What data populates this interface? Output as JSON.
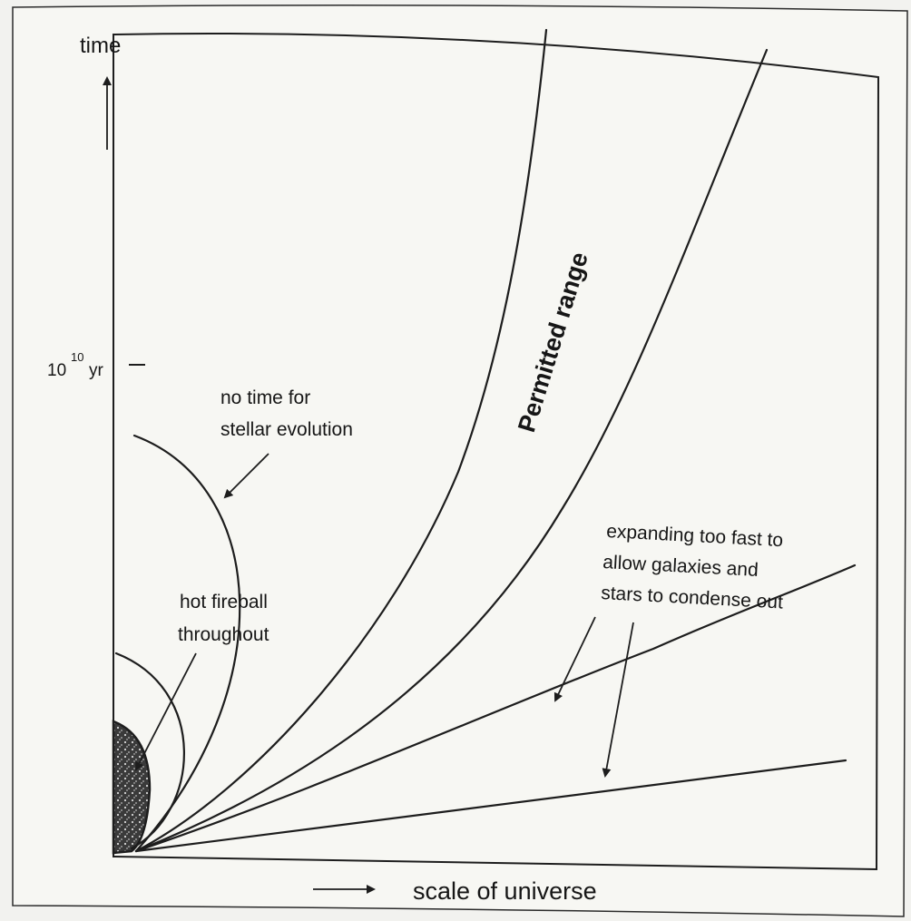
{
  "figure": {
    "y_axis_label": "time",
    "x_axis_label": "scale of universe",
    "tick_label_base": "10",
    "tick_label_exponent": "10",
    "tick_label_unit": "yr",
    "annotations": {
      "no_time_line1": "no time for",
      "no_time_line2": "stellar evolution",
      "fireball_line1": "hot fireball",
      "fireball_line2": "throughout",
      "permitted": "Permitted range",
      "expanding_line1": "expanding too fast to",
      "expanding_line2": "allow galaxies and",
      "expanding_line3": "stars to condense out"
    }
  },
  "colors": {
    "ink": "#1d1d1d",
    "paper": "#f7f7f3",
    "background": "#f2f2ef"
  },
  "icons": [
    "up-arrow-icon",
    "right-arrow-icon"
  ]
}
